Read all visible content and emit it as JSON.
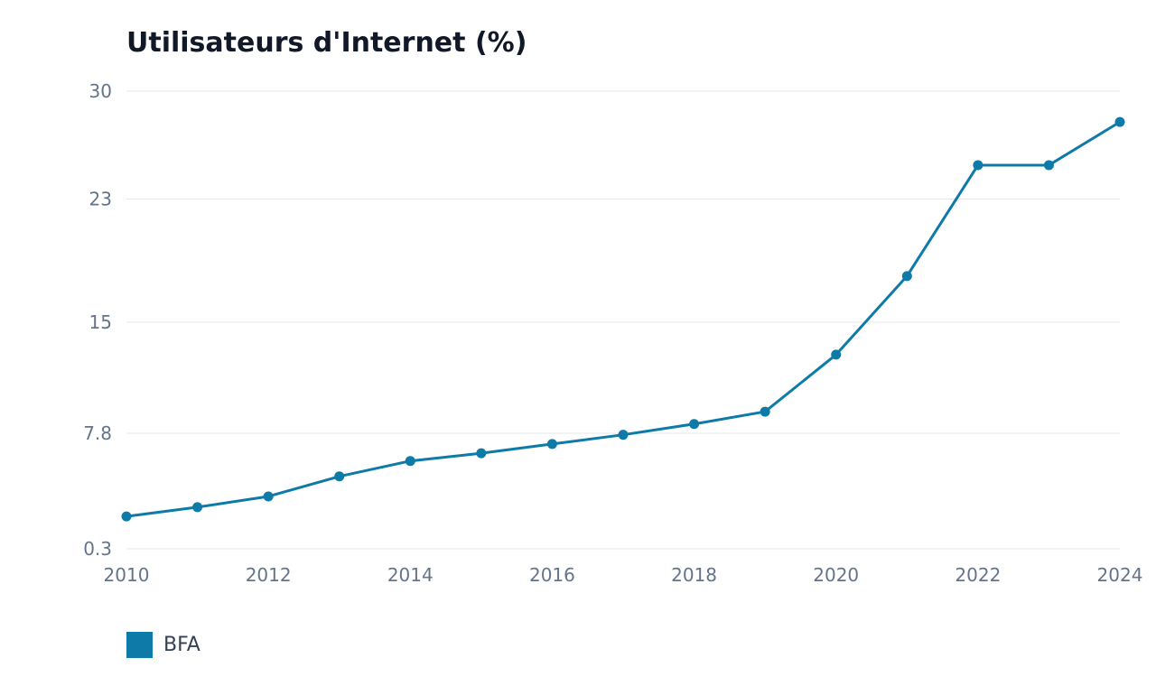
{
  "chart_data": {
    "type": "line",
    "title": "Utilisateurs d'Internet (%)",
    "xlabel": "",
    "ylabel": "",
    "x": [
      2010,
      2011,
      2012,
      2013,
      2014,
      2015,
      2016,
      2017,
      2018,
      2019,
      2020,
      2021,
      2022,
      2023,
      2024
    ],
    "x_tick_labels": [
      "2010",
      "2012",
      "2014",
      "2016",
      "2018",
      "2020",
      "2022",
      "2024"
    ],
    "y_tick_labels": [
      "30",
      "23",
      "15",
      "7.8",
      "0.3"
    ],
    "ylim": [
      0.3,
      30
    ],
    "grid": true,
    "legend_position": "bottom-left",
    "series": [
      {
        "name": "BFA",
        "color": "#0e7aa8",
        "values": [
          2.4,
          3.0,
          3.7,
          5.0,
          6.0,
          6.5,
          7.1,
          7.7,
          8.4,
          9.2,
          12.9,
          18.0,
          25.2,
          25.2,
          28.0
        ]
      }
    ]
  }
}
